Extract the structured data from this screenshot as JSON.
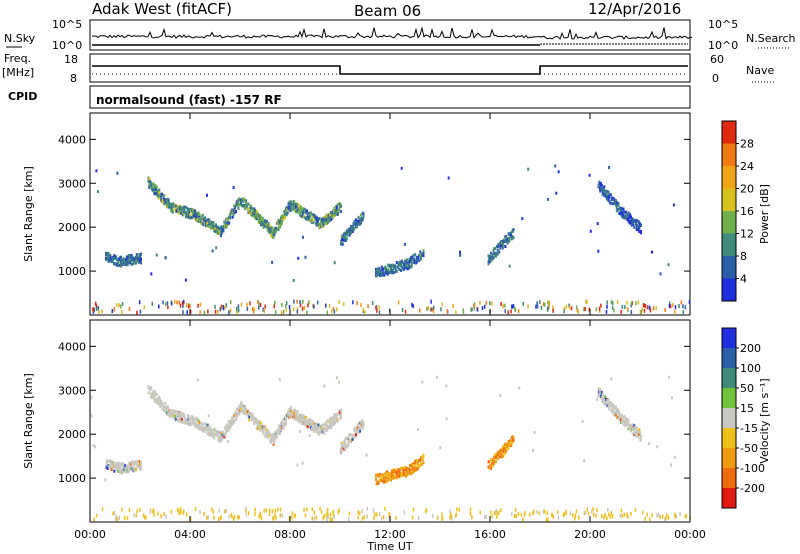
{
  "header": {
    "radar": "Adak West (fitACF)",
    "beam": "Beam 06",
    "date": "12/Apr/2016"
  },
  "panels": {
    "nsky_label": "N.Sky",
    "nsearch_label": "N.Search",
    "nsky_ticks": [
      "10^5",
      "10^0"
    ],
    "nsearch_ticks": [
      "10^5",
      "10^0"
    ],
    "freq_label_1": "Freq.",
    "freq_label_2": "[MHz]",
    "freq_ticks": [
      "18",
      "8"
    ],
    "nave_label": "Nave",
    "nave_ticks": [
      "60",
      "0"
    ],
    "cpid_label": "CPID",
    "cpid_text": "normalsound (fast) -157 RF"
  },
  "chart_data": [
    {
      "type": "heatmap",
      "title": "",
      "xlabel": "Time UT",
      "ylabel": "Slant Range [km]",
      "x_ticks": [
        "00:00",
        "04:00",
        "08:00",
        "12:00",
        "16:00",
        "20:00",
        "00:00"
      ],
      "y_ticks": [
        "1000",
        "2000",
        "3000",
        "4000"
      ],
      "ylim": [
        0,
        4600
      ],
      "colorbar": {
        "label": "Power [dB]",
        "ticks": [
          "4",
          "8",
          "12",
          "16",
          "20",
          "24",
          "28"
        ],
        "colors": [
          "#1f2fe0",
          "#2d5fa8",
          "#3f8a7a",
          "#6fb04a",
          "#d8c21e",
          "#f0a416",
          "#f07a12",
          "#e02a10"
        ]
      },
      "traces": [
        {
          "name": "arc-a",
          "hours": [
            0.6,
            1.2,
            2.0
          ],
          "ranges": [
            1350,
            1250,
            1330
          ],
          "value": "mid"
        },
        {
          "name": "arc-b",
          "hours": [
            2.3,
            3.2,
            4.2
          ],
          "ranges": [
            3050,
            2500,
            2300
          ],
          "value": "high"
        },
        {
          "name": "arc-c",
          "hours": [
            4.2,
            5.2,
            6.0
          ],
          "ranges": [
            2300,
            1950,
            2650
          ],
          "value": "high"
        },
        {
          "name": "arc-d",
          "hours": [
            6.0,
            7.3,
            8.0
          ],
          "ranges": [
            2650,
            1900,
            2550
          ],
          "value": "high"
        },
        {
          "name": "arc-e",
          "hours": [
            8.0,
            9.2,
            10.0
          ],
          "ranges": [
            2550,
            2100,
            2500
          ],
          "value": "high"
        },
        {
          "name": "arc-f",
          "hours": [
            10.0,
            10.9
          ],
          "ranges": [
            1700,
            2300
          ],
          "value": "mid"
        },
        {
          "name": "arc-g",
          "hours": [
            11.4,
            12.7,
            13.3
          ],
          "ranges": [
            1000,
            1200,
            1450
          ],
          "value": "mid"
        },
        {
          "name": "arc-h",
          "hours": [
            15.9,
            16.9
          ],
          "ranges": [
            1300,
            1900
          ],
          "value": "mid"
        },
        {
          "name": "arc-i",
          "hours": [
            20.3,
            21.2,
            22.0
          ],
          "ranges": [
            3000,
            2400,
            2000
          ],
          "value": "low"
        }
      ]
    },
    {
      "type": "heatmap",
      "title": "",
      "xlabel": "Time UT",
      "ylabel": "Slant Range [km]",
      "x_ticks": [
        "00:00",
        "04:00",
        "08:00",
        "12:00",
        "16:00",
        "20:00",
        "00:00"
      ],
      "y_ticks": [
        "1000",
        "2000",
        "3000",
        "4000"
      ],
      "ylim": [
        0,
        4600
      ],
      "colorbar": {
        "label": "Velocity [m s⁻¹]",
        "ticks": [
          "200",
          "100",
          "50",
          "15",
          "-15",
          "-50",
          "-100",
          "-200"
        ],
        "colors": [
          "#1f2fe0",
          "#2d5fa8",
          "#3f8a7a",
          "#6fc23a",
          "#c8c8c0",
          "#f0c01a",
          "#f09a10",
          "#f06a10",
          "#e01a10"
        ]
      },
      "traces": [
        {
          "name": "arc-a",
          "hours": [
            0.6,
            1.2,
            2.0
          ],
          "ranges": [
            1350,
            1250,
            1330
          ],
          "value": "zero"
        },
        {
          "name": "arc-b",
          "hours": [
            2.3,
            3.2,
            4.2
          ],
          "ranges": [
            3050,
            2500,
            2300
          ],
          "value": "zero"
        },
        {
          "name": "arc-c",
          "hours": [
            4.2,
            5.2,
            6.0
          ],
          "ranges": [
            2300,
            1950,
            2650
          ],
          "value": "zero"
        },
        {
          "name": "arc-d",
          "hours": [
            6.0,
            7.3,
            8.0
          ],
          "ranges": [
            2650,
            1900,
            2550
          ],
          "value": "zero"
        },
        {
          "name": "arc-e",
          "hours": [
            8.0,
            9.2,
            10.0
          ],
          "ranges": [
            2550,
            2100,
            2500
          ],
          "value": "zero"
        },
        {
          "name": "arc-f",
          "hours": [
            10.0,
            10.9
          ],
          "ranges": [
            1700,
            2300
          ],
          "value": "zero"
        },
        {
          "name": "arc-g",
          "hours": [
            11.4,
            12.7,
            13.3
          ],
          "ranges": [
            1000,
            1200,
            1450
          ],
          "value": "neg"
        },
        {
          "name": "arc-h",
          "hours": [
            15.9,
            16.9
          ],
          "ranges": [
            1300,
            1900
          ],
          "value": "neg"
        },
        {
          "name": "arc-i",
          "hours": [
            20.3,
            21.2,
            22.0
          ],
          "ranges": [
            3000,
            2400,
            2000
          ],
          "value": "zero"
        }
      ]
    }
  ]
}
